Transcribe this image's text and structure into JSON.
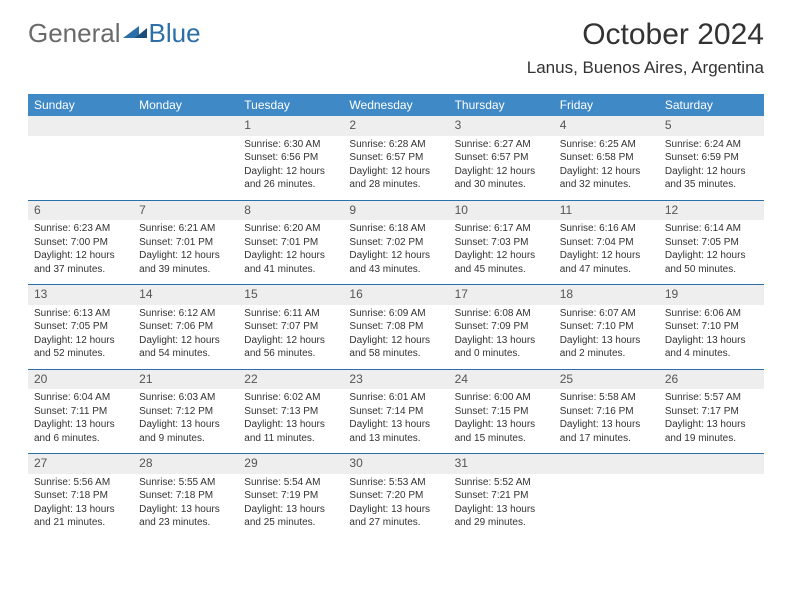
{
  "colors": {
    "header_bg": "#3e89c6",
    "header_text": "#ffffff",
    "daynum_bg": "#eeeeee",
    "daynum_text": "#555555",
    "body_text": "#333333",
    "separator": "#2c6fa8",
    "logo_gray": "#6a6a6a",
    "logo_blue": "#2c6fa8",
    "page_bg": "#ffffff"
  },
  "fonts": {
    "month_title_pt": 30,
    "location_pt": 17,
    "dow_pt": 12,
    "daynum_pt": 12,
    "body_pt": 10,
    "logo_pt": 26
  },
  "logo": {
    "part1": "General",
    "part2": "Blue"
  },
  "title": "October 2024",
  "location": "Lanus, Buenos Aires, Argentina",
  "days_of_week": [
    "Sunday",
    "Monday",
    "Tuesday",
    "Wednesday",
    "Thursday",
    "Friday",
    "Saturday"
  ],
  "weeks": [
    [
      {
        "blank": true
      },
      {
        "blank": true
      },
      {
        "num": "1",
        "sunrise": "6:30 AM",
        "sunset": "6:56 PM",
        "daylight": "12 hours and 26 minutes."
      },
      {
        "num": "2",
        "sunrise": "6:28 AM",
        "sunset": "6:57 PM",
        "daylight": "12 hours and 28 minutes."
      },
      {
        "num": "3",
        "sunrise": "6:27 AM",
        "sunset": "6:57 PM",
        "daylight": "12 hours and 30 minutes."
      },
      {
        "num": "4",
        "sunrise": "6:25 AM",
        "sunset": "6:58 PM",
        "daylight": "12 hours and 32 minutes."
      },
      {
        "num": "5",
        "sunrise": "6:24 AM",
        "sunset": "6:59 PM",
        "daylight": "12 hours and 35 minutes."
      }
    ],
    [
      {
        "num": "6",
        "sunrise": "6:23 AM",
        "sunset": "7:00 PM",
        "daylight": "12 hours and 37 minutes."
      },
      {
        "num": "7",
        "sunrise": "6:21 AM",
        "sunset": "7:01 PM",
        "daylight": "12 hours and 39 minutes."
      },
      {
        "num": "8",
        "sunrise": "6:20 AM",
        "sunset": "7:01 PM",
        "daylight": "12 hours and 41 minutes."
      },
      {
        "num": "9",
        "sunrise": "6:18 AM",
        "sunset": "7:02 PM",
        "daylight": "12 hours and 43 minutes."
      },
      {
        "num": "10",
        "sunrise": "6:17 AM",
        "sunset": "7:03 PM",
        "daylight": "12 hours and 45 minutes."
      },
      {
        "num": "11",
        "sunrise": "6:16 AM",
        "sunset": "7:04 PM",
        "daylight": "12 hours and 47 minutes."
      },
      {
        "num": "12",
        "sunrise": "6:14 AM",
        "sunset": "7:05 PM",
        "daylight": "12 hours and 50 minutes."
      }
    ],
    [
      {
        "num": "13",
        "sunrise": "6:13 AM",
        "sunset": "7:05 PM",
        "daylight": "12 hours and 52 minutes."
      },
      {
        "num": "14",
        "sunrise": "6:12 AM",
        "sunset": "7:06 PM",
        "daylight": "12 hours and 54 minutes."
      },
      {
        "num": "15",
        "sunrise": "6:11 AM",
        "sunset": "7:07 PM",
        "daylight": "12 hours and 56 minutes."
      },
      {
        "num": "16",
        "sunrise": "6:09 AM",
        "sunset": "7:08 PM",
        "daylight": "12 hours and 58 minutes."
      },
      {
        "num": "17",
        "sunrise": "6:08 AM",
        "sunset": "7:09 PM",
        "daylight": "13 hours and 0 minutes."
      },
      {
        "num": "18",
        "sunrise": "6:07 AM",
        "sunset": "7:10 PM",
        "daylight": "13 hours and 2 minutes."
      },
      {
        "num": "19",
        "sunrise": "6:06 AM",
        "sunset": "7:10 PM",
        "daylight": "13 hours and 4 minutes."
      }
    ],
    [
      {
        "num": "20",
        "sunrise": "6:04 AM",
        "sunset": "7:11 PM",
        "daylight": "13 hours and 6 minutes."
      },
      {
        "num": "21",
        "sunrise": "6:03 AM",
        "sunset": "7:12 PM",
        "daylight": "13 hours and 9 minutes."
      },
      {
        "num": "22",
        "sunrise": "6:02 AM",
        "sunset": "7:13 PM",
        "daylight": "13 hours and 11 minutes."
      },
      {
        "num": "23",
        "sunrise": "6:01 AM",
        "sunset": "7:14 PM",
        "daylight": "13 hours and 13 minutes."
      },
      {
        "num": "24",
        "sunrise": "6:00 AM",
        "sunset": "7:15 PM",
        "daylight": "13 hours and 15 minutes."
      },
      {
        "num": "25",
        "sunrise": "5:58 AM",
        "sunset": "7:16 PM",
        "daylight": "13 hours and 17 minutes."
      },
      {
        "num": "26",
        "sunrise": "5:57 AM",
        "sunset": "7:17 PM",
        "daylight": "13 hours and 19 minutes."
      }
    ],
    [
      {
        "num": "27",
        "sunrise": "5:56 AM",
        "sunset": "7:18 PM",
        "daylight": "13 hours and 21 minutes."
      },
      {
        "num": "28",
        "sunrise": "5:55 AM",
        "sunset": "7:18 PM",
        "daylight": "13 hours and 23 minutes."
      },
      {
        "num": "29",
        "sunrise": "5:54 AM",
        "sunset": "7:19 PM",
        "daylight": "13 hours and 25 minutes."
      },
      {
        "num": "30",
        "sunrise": "5:53 AM",
        "sunset": "7:20 PM",
        "daylight": "13 hours and 27 minutes."
      },
      {
        "num": "31",
        "sunrise": "5:52 AM",
        "sunset": "7:21 PM",
        "daylight": "13 hours and 29 minutes."
      },
      {
        "blank": true
      },
      {
        "blank": true
      }
    ]
  ],
  "labels": {
    "sunrise_prefix": "Sunrise: ",
    "sunset_prefix": "Sunset: ",
    "daylight_prefix": "Daylight: "
  }
}
